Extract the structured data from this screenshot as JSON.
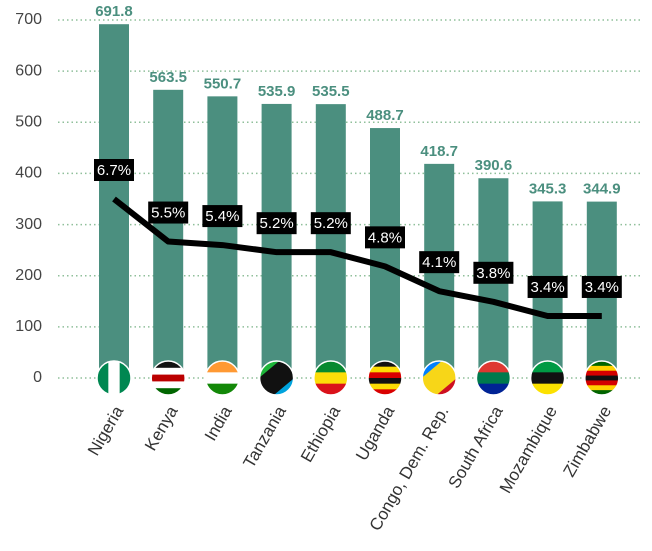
{
  "chart_data": {
    "type": "bar",
    "categories": [
      "Nigeria",
      "Kenya",
      "India",
      "Tanzania",
      "Ethiopia",
      "Uganda",
      "Congo, Dem. Rep.",
      "South Africa",
      "Mozambique",
      "Zimbabwe"
    ],
    "series": [
      {
        "type": "bar",
        "color": "#4b8f7f",
        "values": [
          691.8,
          563.5,
          550.7,
          535.9,
          535.5,
          488.7,
          418.7,
          390.6,
          345.3,
          344.9
        ]
      },
      {
        "type": "line",
        "axis": "y2",
        "color": "#000000",
        "values": [
          6.7,
          5.5,
          5.4,
          5.2,
          5.2,
          4.8,
          4.1,
          3.8,
          3.4,
          3.4
        ],
        "value_labels": [
          "6.7%",
          "5.5%",
          "5.4%",
          "5.2%",
          "5.2%",
          "4.8%",
          "4.1%",
          "3.8%",
          "3.4%",
          "3.4%"
        ]
      }
    ],
    "ylim": [
      0,
      700
    ],
    "yticks": [
      0,
      100,
      200,
      300,
      400,
      500,
      600,
      700
    ],
    "y2lim": [
      1.65,
      11.75
    ],
    "grid": true
  }
}
